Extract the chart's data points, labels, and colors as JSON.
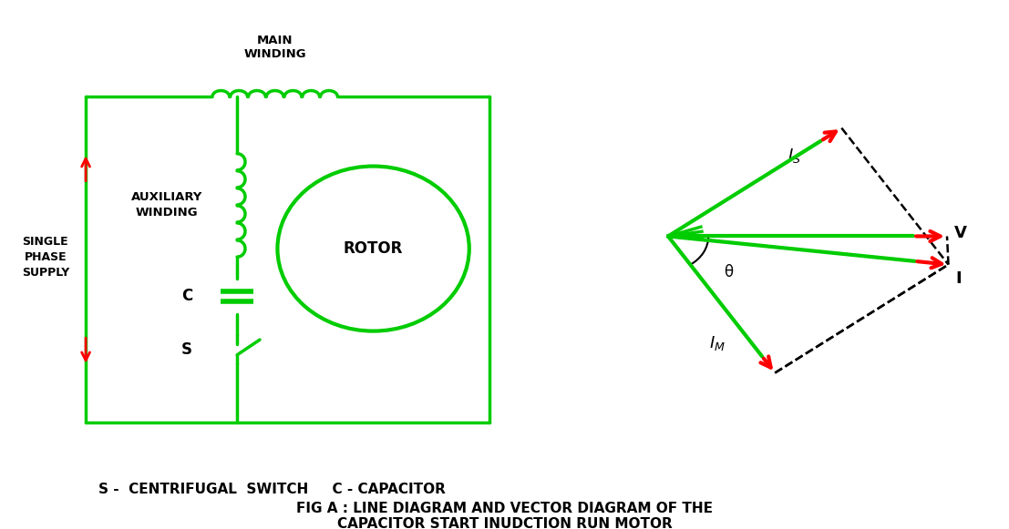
{
  "bg_color": "#ffffff",
  "green": "#00cc00",
  "red": "#ff0000",
  "black": "#000000",
  "title_line1": "FIG A : LINE DIAGRAM AND VECTOR DIAGRAM OF THE",
  "title_line2": "CAPACITOR START INUDCTION RUN MOTOR",
  "legend_line": "S -  CENTRIFUGAL  SWITCH     C - CAPACITOR",
  "main_winding_label": "MAIN\nWINDING",
  "aux_winding_label": "AUXILIARY\nWINDING",
  "rotor_label": "ROTOR",
  "single_phase_label": "SINGLE\nPHASE\nSUPPLY",
  "C_label": "C",
  "S_label": "S",
  "I_label": "I",
  "V_label": "V",
  "theta_label": "θ",
  "lw_circuit": 2.5,
  "lw_vector": 3.0
}
